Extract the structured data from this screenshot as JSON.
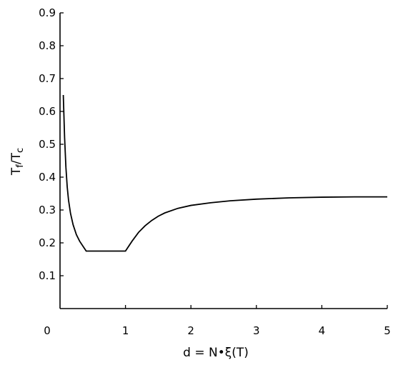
{
  "chart_data": {
    "type": "line",
    "title": "",
    "xlabel": "d = N•ξ(T)",
    "ylabel_main": "T",
    "ylabel_sub1": "f",
    "ylabel_slash": "/T",
    "ylabel_sub2": "c",
    "xlim": [
      0,
      5
    ],
    "ylim": [
      0,
      0.9
    ],
    "x_ticks": [
      0,
      1,
      2,
      3,
      4,
      5
    ],
    "x_tick_labels": [
      "0",
      "1",
      "2",
      "3",
      "4",
      "5"
    ],
    "y_ticks": [
      0.1,
      0.2,
      0.3,
      0.4,
      0.5,
      0.6,
      0.7,
      0.8,
      0.9
    ],
    "y_tick_labels": [
      "0.1",
      "0.2",
      "0.3",
      "0.4",
      "0.5",
      "0.6",
      "0.7",
      "0.8",
      "0.9"
    ],
    "grid": false,
    "series": [
      {
        "points": [
          [
            0.05,
            0.65
          ],
          [
            0.07,
            0.52
          ],
          [
            0.09,
            0.43
          ],
          [
            0.11,
            0.37
          ],
          [
            0.13,
            0.33
          ],
          [
            0.16,
            0.29
          ],
          [
            0.2,
            0.255
          ],
          [
            0.25,
            0.225
          ],
          [
            0.3,
            0.205
          ],
          [
            0.35,
            0.19
          ],
          [
            0.4,
            0.175
          ],
          [
            0.6,
            0.175
          ],
          [
            0.8,
            0.175
          ],
          [
            1.0,
            0.175
          ],
          [
            1.1,
            0.205
          ],
          [
            1.2,
            0.232
          ],
          [
            1.3,
            0.252
          ],
          [
            1.4,
            0.268
          ],
          [
            1.5,
            0.281
          ],
          [
            1.6,
            0.291
          ],
          [
            1.8,
            0.305
          ],
          [
            2.0,
            0.314
          ],
          [
            2.3,
            0.322
          ],
          [
            2.6,
            0.328
          ],
          [
            3.0,
            0.333
          ],
          [
            3.5,
            0.337
          ],
          [
            4.0,
            0.339
          ],
          [
            4.5,
            0.34
          ],
          [
            5.0,
            0.34
          ]
        ]
      }
    ]
  }
}
